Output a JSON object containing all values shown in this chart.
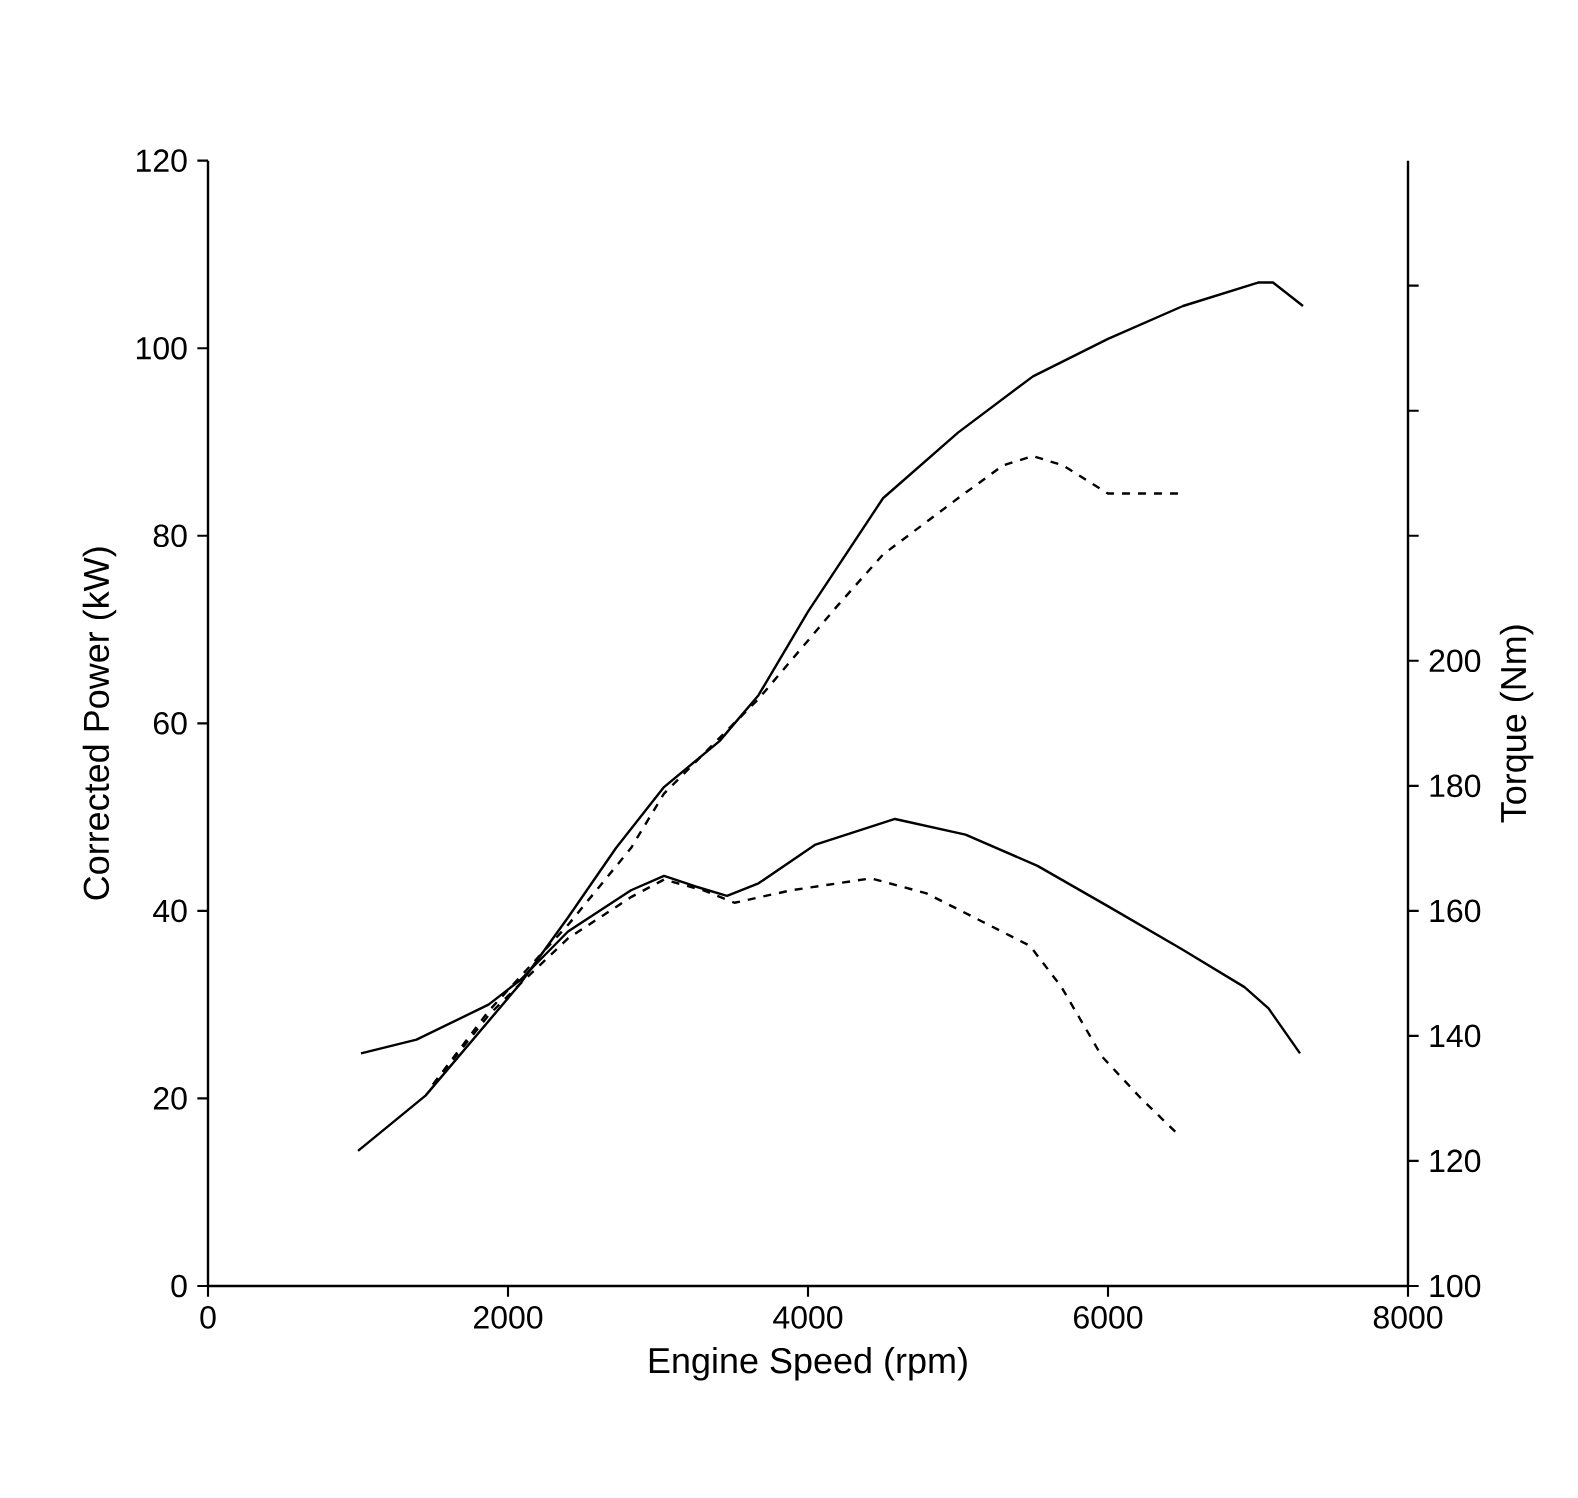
{
  "chart_data": {
    "type": "line",
    "xlabel": "Engine Speed (rpm)",
    "ylabel": "Corrected Power (kW)",
    "y2label": "Torque (Nm)",
    "xlim": [
      0,
      8000
    ],
    "xticks": [
      0,
      2000,
      4000,
      6000,
      8000
    ],
    "ylim": [
      0,
      120
    ],
    "yticks": [
      0,
      20,
      40,
      60,
      80,
      100,
      120
    ],
    "y2lim": [
      100,
      280
    ],
    "y2ticks": [
      100,
      120,
      140,
      160,
      180,
      200,
      {
        "value": 220,
        "label": null
      },
      {
        "value": 240,
        "label": null
      },
      {
        "value": 260,
        "label": null
      }
    ],
    "series": [
      {
        "color": "#000000",
        "line_style": "solid",
        "x": [
          1000,
          1450,
          2080,
          2400,
          2720,
          3040,
          3410,
          3670,
          4000,
          4500,
          5000,
          5500,
          6000,
          6500,
          7000,
          7100,
          7300
        ],
        "values": [
          14.4,
          20.3,
          32.2,
          39.3,
          46.7,
          53.2,
          58.1,
          63,
          71.9,
          84,
          91,
          97,
          101,
          104.5,
          107,
          107,
          104.5
        ]
      },
      {
        "color": "#000000",
        "line_style": "dashed",
        "x": [
          1500,
          1870,
          2400,
          2820,
          3040,
          3670,
          4200,
          4500,
          5000,
          5300,
          5500,
          5700,
          6000,
          6500
        ],
        "values": [
          21.5,
          29.3,
          38.5,
          46.7,
          52.5,
          62.6,
          72.6,
          78,
          84,
          87.5,
          88.5,
          87.5,
          84.5,
          84.5
        ]
      },
      {
        "color": "#000000",
        "line_style": "solid",
        "axis": "y2",
        "x": [
          1020,
          1390,
          1870,
          2080,
          2400,
          2820,
          3040,
          3250,
          3460,
          3670,
          4050,
          4580,
          5050,
          5530,
          6010,
          6490,
          6910,
          7070,
          7280
        ],
        "values": [
          137.2,
          139.4,
          145,
          148.9,
          156.7,
          163.3,
          165.6,
          163.9,
          162.4,
          164.4,
          170.6,
          174.7,
          172.2,
          167.2,
          160.6,
          153.9,
          147.8,
          144.4,
          137.2
        ]
      },
      {
        "color": "#000000",
        "line_style": "dashed",
        "axis": "y2",
        "x": [
          1500,
          1870,
          2080,
          2400,
          2820,
          3040,
          3300,
          3510,
          3890,
          4420,
          4790,
          5160,
          5480,
          5690,
          5960,
          6220,
          6460
        ],
        "values": [
          132.2,
          143.3,
          148.3,
          155.6,
          162.2,
          165,
          163.3,
          161.3,
          163.3,
          165.2,
          162.8,
          158.3,
          154.4,
          147.8,
          136.7,
          130,
          124.4
        ]
      }
    ]
  }
}
